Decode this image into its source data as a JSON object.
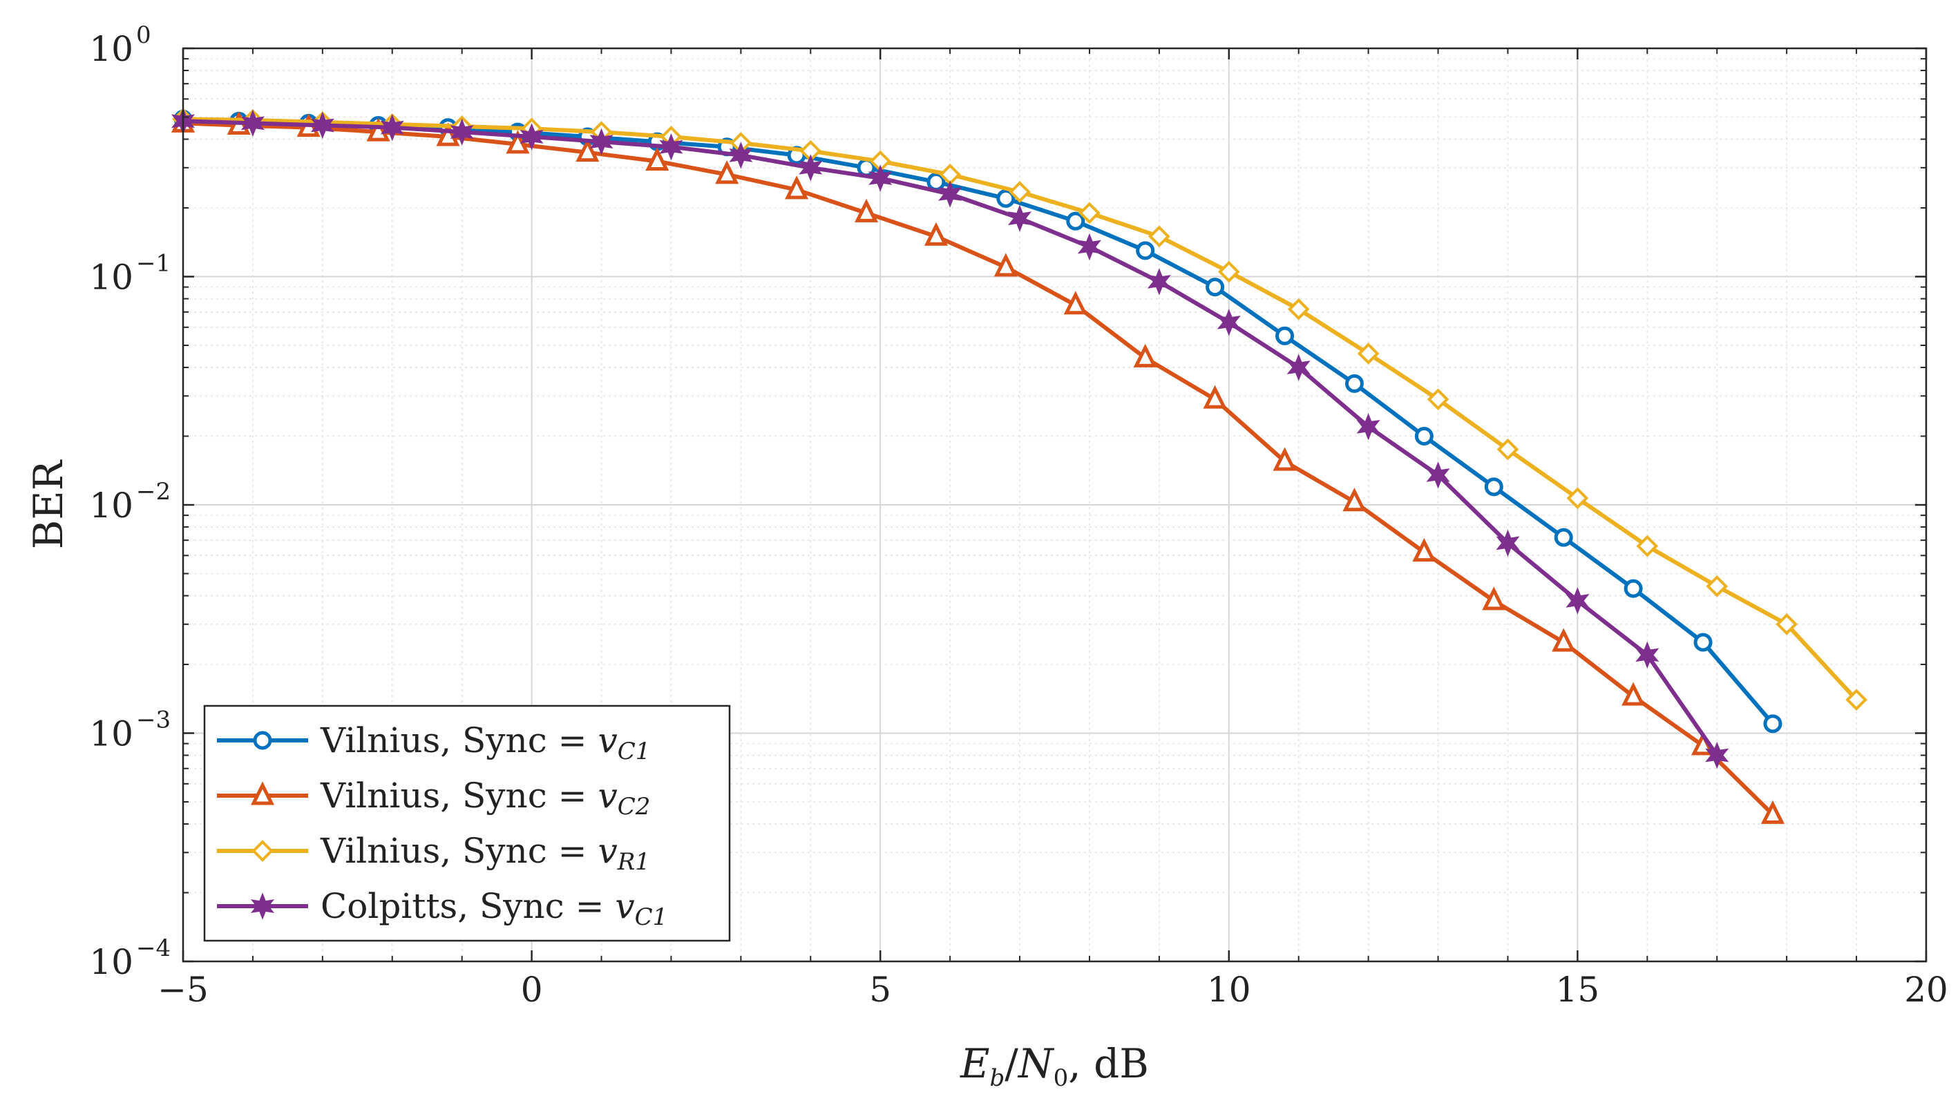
{
  "chart_data": {
    "type": "line",
    "title": "",
    "xlabel": "E_b/N_0, dB",
    "xlabel_parts": {
      "e": "E",
      "b": "b",
      "n": "N",
      "zero": "0",
      "rest": ", dB"
    },
    "ylabel": "BER",
    "xlim": [
      -5,
      20
    ],
    "ylim": [
      0.0001,
      1
    ],
    "yscale": "log",
    "grid": true,
    "minor_grid": true,
    "legend_location": "bottom-left",
    "xticks": [
      -5,
      0,
      5,
      10,
      15,
      20
    ],
    "xtick_labels": [
      "−5",
      "0",
      "5",
      "10",
      "15",
      "20"
    ],
    "yticks": [
      {
        "value": 1,
        "base": "10",
        "exp": "0"
      },
      {
        "value": 0.1,
        "base": "10",
        "exp": "−1"
      },
      {
        "value": 0.01,
        "base": "10",
        "exp": "−2"
      },
      {
        "value": 0.001,
        "base": "10",
        "exp": "−3"
      },
      {
        "value": 0.0001,
        "base": "10",
        "exp": "−4"
      }
    ],
    "series": [
      {
        "name": "Vilnius, Sync = v_C1",
        "label_text": "Vilnius, Sync = ",
        "var": "v",
        "sub": "C1",
        "color": "#0072BD",
        "marker": "circle",
        "x": [
          -5,
          -4.2,
          -3.2,
          -2.2,
          -1.2,
          -0.2,
          0.8,
          1.8,
          2.8,
          3.8,
          4.8,
          5.8,
          6.8,
          7.8,
          8.8,
          9.8,
          10.8,
          11.8,
          12.8,
          13.8,
          14.8,
          15.8,
          16.8,
          17.8
        ],
        "y": [
          0.49,
          0.48,
          0.47,
          0.46,
          0.45,
          0.43,
          0.41,
          0.39,
          0.37,
          0.34,
          0.3,
          0.26,
          0.22,
          0.175,
          0.13,
          0.09,
          0.055,
          0.034,
          0.02,
          0.012,
          0.0072,
          0.0043,
          0.0025,
          0.0011
        ]
      },
      {
        "name": "Vilnius, Sync = v_C2",
        "label_text": "Vilnius, Sync = ",
        "var": "v",
        "sub": "C2",
        "color": "#D95319",
        "marker": "triangle",
        "x": [
          -5,
          -4.2,
          -3.2,
          -2.2,
          -1.2,
          -0.2,
          0.8,
          1.8,
          2.8,
          3.8,
          4.8,
          5.8,
          6.8,
          7.8,
          8.8,
          9.8,
          10.8,
          11.8,
          12.8,
          13.8,
          14.8,
          15.8,
          16.8,
          17.8
        ],
        "y": [
          0.47,
          0.46,
          0.45,
          0.43,
          0.41,
          0.38,
          0.35,
          0.32,
          0.28,
          0.24,
          0.19,
          0.15,
          0.11,
          0.075,
          0.044,
          0.029,
          0.0155,
          0.0103,
          0.0062,
          0.0038,
          0.0025,
          0.00145,
          0.00088,
          0.00044
        ]
      },
      {
        "name": "Vilnius, Sync = v_R1",
        "label_text": "Vilnius, Sync = ",
        "var": "v",
        "sub": "R1",
        "color": "#EDB120",
        "marker": "diamond",
        "x": [
          -5,
          -4,
          -3,
          -2,
          -1,
          0,
          1,
          2,
          3,
          4,
          5,
          6,
          7,
          8,
          9,
          10,
          11,
          12,
          13,
          14,
          15,
          16,
          17,
          18,
          19
        ],
        "y": [
          0.49,
          0.485,
          0.475,
          0.465,
          0.455,
          0.445,
          0.43,
          0.41,
          0.385,
          0.355,
          0.32,
          0.28,
          0.235,
          0.19,
          0.15,
          0.105,
          0.072,
          0.046,
          0.029,
          0.0175,
          0.0107,
          0.0066,
          0.0044,
          0.003,
          0.0014
        ]
      },
      {
        "name": "Colpitts, Sync = v_C1",
        "label_text": "Colpitts, Sync = ",
        "var": "v",
        "sub": "C1",
        "color": "#7E2F8E",
        "marker": "hexagram",
        "x": [
          -5,
          -4,
          -3,
          -2,
          -1,
          0,
          1,
          2,
          3,
          4,
          5,
          6,
          7,
          8,
          9,
          10,
          11,
          12,
          13,
          14,
          15,
          16,
          17
        ],
        "y": [
          0.48,
          0.47,
          0.46,
          0.45,
          0.43,
          0.41,
          0.39,
          0.37,
          0.34,
          0.3,
          0.27,
          0.23,
          0.18,
          0.135,
          0.095,
          0.063,
          0.04,
          0.022,
          0.0135,
          0.0068,
          0.0038,
          0.0022,
          0.0008
        ]
      }
    ]
  }
}
